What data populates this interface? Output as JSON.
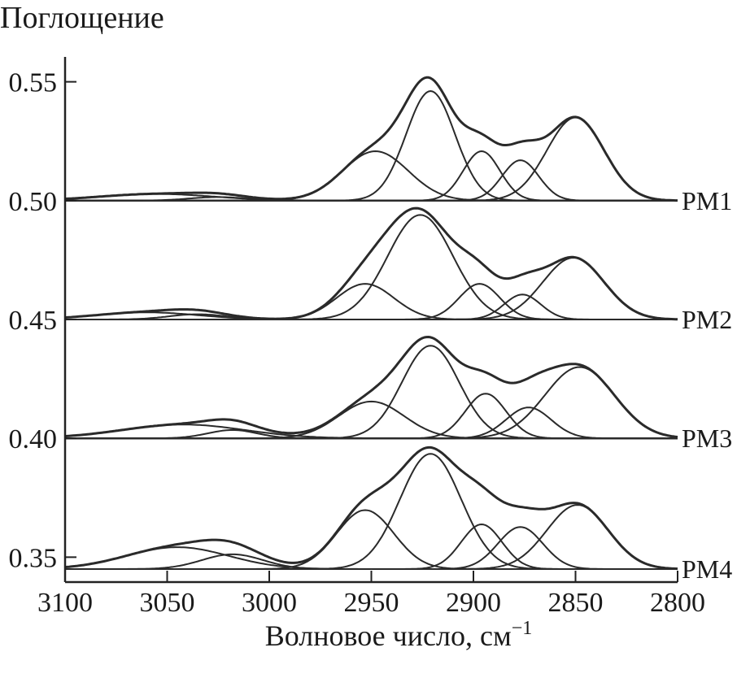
{
  "chart_data": {
    "type": "line",
    "ylabel": "Поглощение",
    "xlabel": "Волновое число, см",
    "xlabel_sup": "−1",
    "xlim": [
      3100,
      2800
    ],
    "xaxis_reversed": true,
    "x_ticks": [
      3100,
      3050,
      3000,
      2950,
      2900,
      2850,
      2800
    ],
    "x_tick_labels": [
      "3100",
      "3050",
      "3000",
      "2950",
      "2900",
      "2850",
      "2800"
    ],
    "ylim": [
      0.345,
      0.555
    ],
    "y_ticks": [
      0.35,
      0.4,
      0.45,
      0.5,
      0.55
    ],
    "y_tick_labels": [
      "0.35",
      "0.40",
      "0.45",
      "0.50",
      "0.55"
    ],
    "grid": false,
    "series": [
      {
        "name": "PM1",
        "baseline": 0.5,
        "components": [
          {
            "center": 3055,
            "height": 0.0028,
            "width": 28
          },
          {
            "center": 3025,
            "height": 0.0015,
            "width": 14
          },
          {
            "center": 2948,
            "height": 0.0208,
            "width": 16
          },
          {
            "center": 2921,
            "height": 0.0461,
            "width": 12
          },
          {
            "center": 2896,
            "height": 0.0208,
            "width": 9
          },
          {
            "center": 2877,
            "height": 0.017,
            "width": 9
          },
          {
            "center": 2850,
            "height": 0.035,
            "width": 14
          }
        ]
      },
      {
        "name": "PM2",
        "baseline": 0.45,
        "components": [
          {
            "center": 3060,
            "height": 0.003,
            "width": 25
          },
          {
            "center": 3035,
            "height": 0.0022,
            "width": 14
          },
          {
            "center": 2953,
            "height": 0.015,
            "width": 14
          },
          {
            "center": 2926,
            "height": 0.044,
            "width": 16
          },
          {
            "center": 2897,
            "height": 0.015,
            "width": 10
          },
          {
            "center": 2876,
            "height": 0.0105,
            "width": 9
          },
          {
            "center": 2851,
            "height": 0.026,
            "width": 15
          }
        ]
      },
      {
        "name": "PM3",
        "baseline": 0.4,
        "components": [
          {
            "center": 3042,
            "height": 0.0058,
            "width": 30
          },
          {
            "center": 3018,
            "height": 0.0035,
            "width": 12
          },
          {
            "center": 2950,
            "height": 0.0155,
            "width": 16
          },
          {
            "center": 2921,
            "height": 0.039,
            "width": 14
          },
          {
            "center": 2894,
            "height": 0.0188,
            "width": 10
          },
          {
            "center": 2873,
            "height": 0.013,
            "width": 11
          },
          {
            "center": 2848,
            "height": 0.03,
            "width": 17
          }
        ]
      },
      {
        "name": "PM4",
        "baseline": 0.345,
        "components": [
          {
            "center": 3045,
            "height": 0.0092,
            "width": 25
          },
          {
            "center": 3018,
            "height": 0.0062,
            "width": 15
          },
          {
            "center": 2953,
            "height": 0.0248,
            "width": 14
          },
          {
            "center": 2921,
            "height": 0.0485,
            "width": 15
          },
          {
            "center": 2896,
            "height": 0.0188,
            "width": 10
          },
          {
            "center": 2877,
            "height": 0.0177,
            "width": 11
          },
          {
            "center": 2849,
            "height": 0.027,
            "width": 15
          }
        ]
      }
    ]
  }
}
